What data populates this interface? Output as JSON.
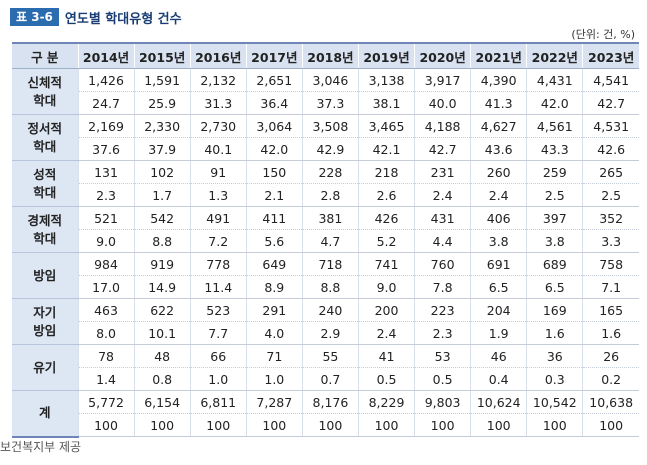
{
  "header": {
    "tag": "표 3-6",
    "title": "연도별 학대유형 건수",
    "unit": "(단위: 건, %)"
  },
  "table": {
    "corner": "구 분",
    "years": [
      "2014년",
      "2015년",
      "2016년",
      "2017년",
      "2018년",
      "2019년",
      "2020년",
      "2021년",
      "2022년",
      "2023년"
    ],
    "rows": [
      {
        "label": "신체적\n학대",
        "counts": [
          "1,426",
          "1,591",
          "2,132",
          "2,651",
          "3,046",
          "3,138",
          "3,917",
          "4,390",
          "4,431",
          "4,541"
        ],
        "pcts": [
          "24.7",
          "25.9",
          "31.3",
          "36.4",
          "37.3",
          "38.1",
          "40.0",
          "41.3",
          "42.0",
          "42.7"
        ]
      },
      {
        "label": "정서적\n학대",
        "counts": [
          "2,169",
          "2,330",
          "2,730",
          "3,064",
          "3,508",
          "3,465",
          "4,188",
          "4,627",
          "4,561",
          "4,531"
        ],
        "pcts": [
          "37.6",
          "37.9",
          "40.1",
          "42.0",
          "42.9",
          "42.1",
          "42.7",
          "43.6",
          "43.3",
          "42.6"
        ]
      },
      {
        "label": "성적\n학대",
        "counts": [
          "131",
          "102",
          "91",
          "150",
          "228",
          "218",
          "231",
          "260",
          "259",
          "265"
        ],
        "pcts": [
          "2.3",
          "1.7",
          "1.3",
          "2.1",
          "2.8",
          "2.6",
          "2.4",
          "2.4",
          "2.5",
          "2.5"
        ]
      },
      {
        "label": "경제적\n학대",
        "counts": [
          "521",
          "542",
          "491",
          "411",
          "381",
          "426",
          "431",
          "406",
          "397",
          "352"
        ],
        "pcts": [
          "9.0",
          "8.8",
          "7.2",
          "5.6",
          "4.7",
          "5.2",
          "4.4",
          "3.8",
          "3.8",
          "3.3"
        ]
      },
      {
        "label": "방임",
        "counts": [
          "984",
          "919",
          "778",
          "649",
          "718",
          "741",
          "760",
          "691",
          "689",
          "758"
        ],
        "pcts": [
          "17.0",
          "14.9",
          "11.4",
          "8.9",
          "8.8",
          "9.0",
          "7.8",
          "6.5",
          "6.5",
          "7.1"
        ]
      },
      {
        "label": "자기\n방임",
        "counts": [
          "463",
          "622",
          "523",
          "291",
          "240",
          "200",
          "223",
          "204",
          "169",
          "165"
        ],
        "pcts": [
          "8.0",
          "10.1",
          "7.7",
          "4.0",
          "2.9",
          "2.4",
          "2.3",
          "1.9",
          "1.6",
          "1.6"
        ]
      },
      {
        "label": "유기",
        "counts": [
          "78",
          "48",
          "66",
          "71",
          "55",
          "41",
          "53",
          "46",
          "36",
          "26"
        ],
        "pcts": [
          "1.4",
          "0.8",
          "1.0",
          "1.0",
          "0.7",
          "0.5",
          "0.5",
          "0.4",
          "0.3",
          "0.2"
        ]
      },
      {
        "label": "계",
        "counts": [
          "5,772",
          "6,154",
          "6,811",
          "7,287",
          "8,176",
          "8,229",
          "9,803",
          "10,624",
          "10,542",
          "10,638"
        ],
        "pcts": [
          "100",
          "100",
          "100",
          "100",
          "100",
          "100",
          "100",
          "100",
          "100",
          "100"
        ]
      }
    ]
  },
  "source": "보건복지부 제공"
}
